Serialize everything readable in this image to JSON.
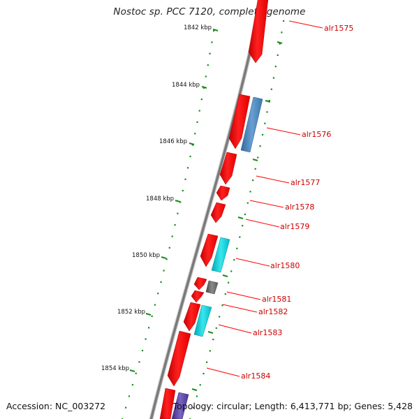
{
  "title": "Nostoc sp. PCC 7120, complete genome",
  "footer": {
    "accession": "Accession: NC_003272",
    "summary": "Topology: circular; Length: 6,413,771 bp; Genes: 5,428"
  },
  "kbp_labels": [
    "1842 kbp",
    "1844 kbp",
    "1846 kbp",
    "1848 kbp",
    "1850 kbp",
    "1852 kbp",
    "1854 kbp"
  ],
  "gene_labels": [
    "alr1575",
    "alr1576",
    "alr1577",
    "alr1578",
    "alr1579",
    "alr1580",
    "alr1581",
    "alr1582",
    "alr1583",
    "alr1584"
  ],
  "colors": {
    "background": "#ffffff",
    "backbone": "#808080",
    "forward_gene": "#ff0000",
    "cog_blue": "#4682b4",
    "cog_cyan": "#00c8d2",
    "cog_gray": "#666666",
    "cog_purple": "#5a3c9a",
    "tick": "#1a8c1a",
    "label_text": "#cc0000",
    "leader_line": "#ff0000"
  }
}
